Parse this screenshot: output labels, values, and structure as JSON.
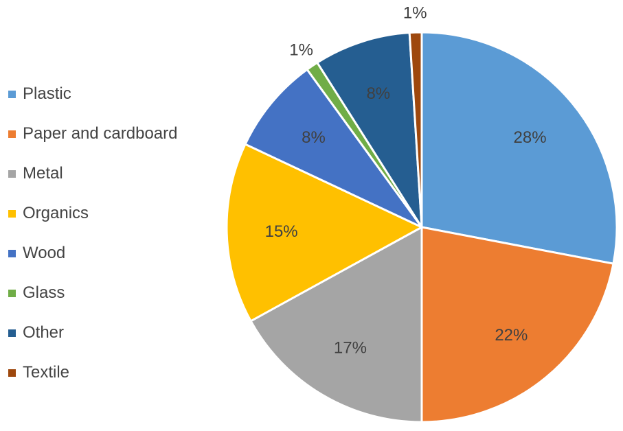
{
  "chart_data": {
    "type": "pie",
    "title": "",
    "legend_position": "left",
    "start_angle_deg": 0,
    "direction": "clockwise",
    "categories": [
      "Plastic",
      "Paper and cardboard",
      "Metal",
      "Organics",
      "Wood",
      "Glass",
      "Other",
      "Textile"
    ],
    "values": [
      28,
      22,
      17,
      15,
      8,
      1,
      8,
      1
    ],
    "data_labels": [
      "28%",
      "22%",
      "17%",
      "15%",
      "8%",
      "1%",
      "8%",
      "1%"
    ],
    "label_placement": [
      "inside",
      "inside",
      "inside",
      "inside",
      "inside",
      "outside",
      "inside",
      "outside"
    ],
    "colors": [
      "#5B9BD5",
      "#ED7D31",
      "#A5A5A5",
      "#FFC000",
      "#4472C4",
      "#70AD47",
      "#255E91",
      "#9E480E"
    ],
    "slice_border_color": "#FFFFFF"
  }
}
